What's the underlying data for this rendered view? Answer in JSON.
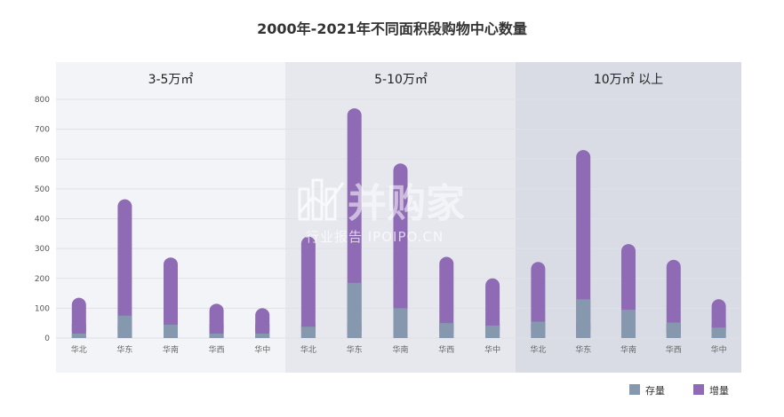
{
  "chart_data": {
    "type": "bar",
    "title": "2000年-2021年不同面积段购物中心数量",
    "ylim": [
      0,
      800
    ],
    "yticks": [
      0,
      100,
      200,
      300,
      400,
      500,
      600,
      700,
      800
    ],
    "categories": [
      "华北",
      "华东",
      "华南",
      "华西",
      "华中"
    ],
    "stacked": true,
    "legend": {
      "placement": "bottom-right",
      "items": [
        "存量",
        "增量"
      ]
    },
    "colors": {
      "存量": "#8698ad",
      "增量": "#8e6bb4"
    },
    "panels": [
      {
        "title": "3-5万㎡",
        "series": [
          {
            "name": "存量",
            "values": [
              15,
              75,
              45,
              15,
              15
            ]
          },
          {
            "name": "增量",
            "values": [
              120,
              390,
              225,
              100,
              85
            ]
          }
        ]
      },
      {
        "title": "5-10万㎡",
        "series": [
          {
            "name": "存量",
            "values": [
              38,
              185,
              100,
              50,
              42
            ]
          },
          {
            "name": "增量",
            "values": [
              302,
              585,
              485,
              222,
              158
            ]
          }
        ]
      },
      {
        "title": "10万㎡ 以上",
        "series": [
          {
            "name": "存量",
            "values": [
              55,
              130,
              95,
              52,
              35
            ]
          },
          {
            "name": "增量",
            "values": [
              200,
              500,
              220,
              210,
              95
            ]
          }
        ]
      }
    ]
  },
  "watermark": {
    "brand": "并购家",
    "subtitle": "行业报告 IPOIPO.CN"
  }
}
